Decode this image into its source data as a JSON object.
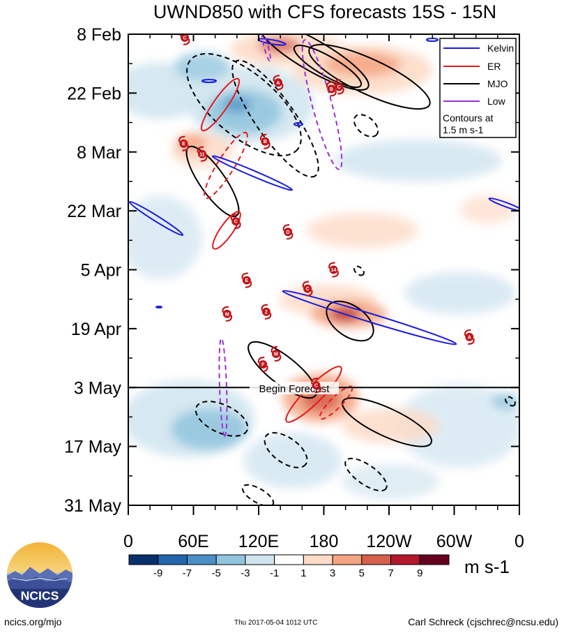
{
  "chart_data": {
    "type": "heatmap",
    "title": "UWND850 with CFS forecasts  15S - 15N",
    "x_tick_labels": [
      "0",
      "60E",
      "120E",
      "180",
      "120W",
      "60W",
      "0"
    ],
    "x_range_degrees_east": [
      0,
      360
    ],
    "y_tick_labels": [
      "8 Feb",
      "22 Feb",
      "8 Mar",
      "22 Mar",
      "5 Apr",
      "19 Apr",
      "3 May",
      "17 May",
      "31 May"
    ],
    "y_range_days_from_8_feb": [
      0,
      112
    ],
    "forecast_line": {
      "label": "Begin Forecast",
      "day": 84
    },
    "legend": {
      "items": [
        {
          "label": "Kelvin",
          "color": "#1c1cdc"
        },
        {
          "label": "ER",
          "color": "#e31a1c"
        },
        {
          "label": "MJO",
          "color": "#000000"
        },
        {
          "label": "Low",
          "color": "#9b30d9"
        }
      ],
      "note_line1": "Contours at",
      "note_line2": "1.5 m s-1",
      "position": "top-right"
    },
    "colorbar": {
      "levels": [
        "-9",
        "-7",
        "-5",
        "-3",
        "-1",
        "1",
        "3",
        "5",
        "7",
        "9"
      ],
      "colors": [
        "#08306b",
        "#2166ac",
        "#4a8fc7",
        "#92c5de",
        "#d1e5f0",
        "#ffffff",
        "#fddbc7",
        "#f4a582",
        "#d6604d",
        "#b2182b",
        "#67001f"
      ],
      "units": "m s-1"
    },
    "storm_markers": [
      {
        "label": "C",
        "lon": 52,
        "day": 0.8
      },
      {
        "label": "A",
        "lon": 138,
        "day": 11.5
      },
      {
        "label": "B",
        "lon": 187,
        "day": 13
      },
      {
        "label": "C",
        "lon": 194,
        "day": 12.5
      },
      {
        "label": "E",
        "lon": 51,
        "day": 26
      },
      {
        "label": "11",
        "lon": 68,
        "day": 28.5
      },
      {
        "label": "B",
        "lon": 126,
        "day": 25.5
      },
      {
        "label": "C",
        "lon": 99,
        "day": 44.5
      },
      {
        "label": "D",
        "lon": 147,
        "day": 47
      },
      {
        "label": "14",
        "lon": 189,
        "day": 56
      },
      {
        "label": "E",
        "lon": 109,
        "day": 58.5
      },
      {
        "label": "C",
        "lon": 165,
        "day": 60.5
      },
      {
        "label": "M",
        "lon": 91,
        "day": 66.5
      },
      {
        "label": "Z",
        "lon": 127,
        "day": 66
      },
      {
        "label": "A",
        "lon": 314,
        "day": 72
      },
      {
        "label": "M",
        "lon": 136,
        "day": 76
      },
      {
        "label": "F",
        "lon": 124,
        "day": 78.5
      },
      {
        "label": "C",
        "lon": 173,
        "day": 83.5
      }
    ]
  },
  "footer": {
    "left": "ncics.org/mjo",
    "center": "Thu 2017-05-04 1012 UTC",
    "right": "Carl Schreck (cjschrec@ncsu.edu)",
    "logo_text": "NCICS"
  }
}
